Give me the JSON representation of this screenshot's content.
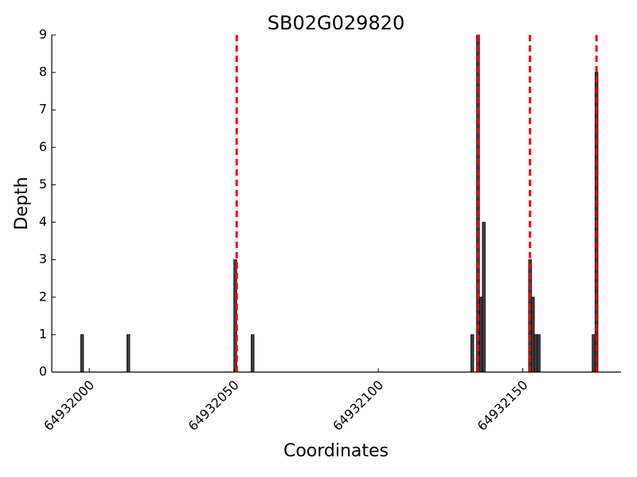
{
  "chart_data": {
    "type": "bar",
    "title": "SB02G029820",
    "x_label": "Coordinates",
    "y_label": "Depth",
    "x": [
      64931997,
      64932013,
      64932050,
      64932056,
      64932132,
      64932134,
      64932135,
      64932136,
      64932152,
      64932153,
      64932154,
      64932155,
      64932174,
      64932175
    ],
    "values": [
      1,
      1,
      3,
      1,
      1,
      9,
      2,
      4,
      3,
      2,
      1,
      1,
      1,
      8
    ],
    "color": "#404040",
    "vlines": [
      64932051,
      64932134.5,
      64932152.5,
      64932175.5
    ],
    "vline_color": "#ff0000",
    "xlim": [
      64931987,
      64932184
    ],
    "xticks": [
      64932000,
      64932050,
      64932100,
      64932150
    ],
    "ylim": [
      0,
      9
    ],
    "yticks": [
      0,
      1,
      2,
      3,
      4,
      5,
      6,
      7,
      8,
      9
    ]
  }
}
